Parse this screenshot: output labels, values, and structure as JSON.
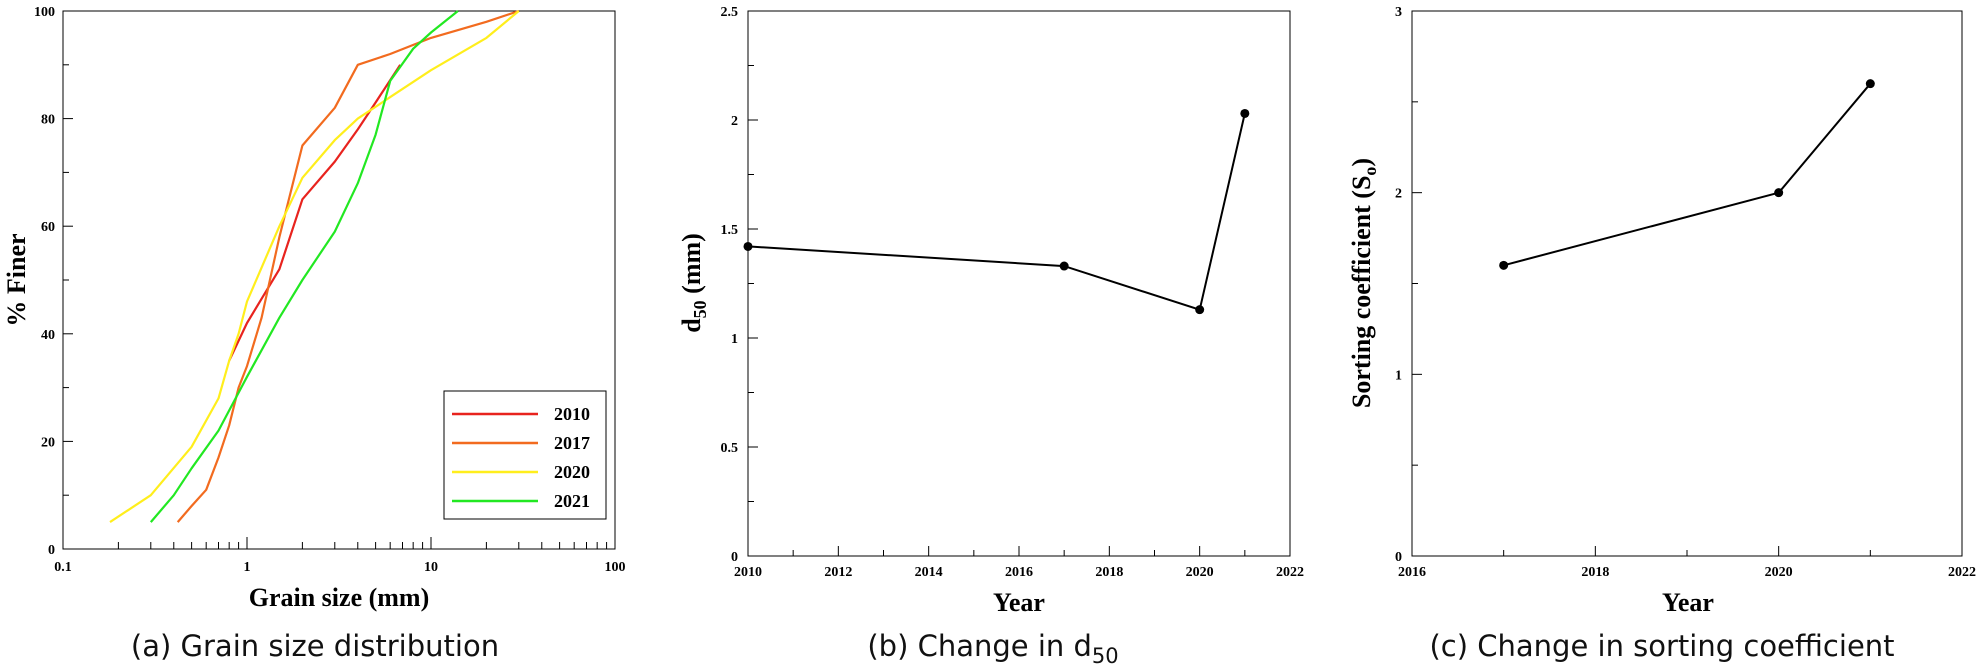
{
  "chart_data": [
    {
      "type": "line",
      "caption": "(a) Grain size distribution",
      "xlabel": "Grain size (mm)",
      "ylabel": "% Finer",
      "xscale": "log",
      "xlim": [
        0.1,
        100
      ],
      "ylim": [
        0,
        100
      ],
      "xticks": [
        "0.1",
        "1",
        "10",
        "100"
      ],
      "yticks": [
        "0",
        "20",
        "40",
        "60",
        "80",
        "100"
      ],
      "legend_position": "bottom-right",
      "series": [
        {
          "name": "2010",
          "color": "#e8231e",
          "x": [
            0.8,
            1.0,
            1.5,
            2.0,
            3.0,
            4.0,
            5.0,
            6.8
          ],
          "y": [
            35,
            42,
            52,
            65,
            72,
            78,
            83,
            90
          ]
        },
        {
          "name": "2017",
          "color": "#f26b1f",
          "x": [
            0.42,
            0.5,
            0.6,
            0.7,
            0.8,
            0.9,
            1.0,
            1.2,
            1.5,
            2.0,
            3.0,
            4.0,
            6.0,
            10.0,
            20.0,
            30.0
          ],
          "y": [
            5,
            8,
            11,
            17,
            23,
            30,
            34,
            43,
            58,
            75,
            82,
            90,
            92,
            95,
            98,
            100
          ]
        },
        {
          "name": "2020",
          "color": "#ffee1c",
          "x": [
            0.18,
            0.3,
            0.5,
            0.7,
            0.8,
            0.9,
            1.0,
            1.5,
            2.0,
            3.0,
            4.0,
            6.0,
            10.0,
            20.0,
            30.0
          ],
          "y": [
            5,
            10,
            19,
            28,
            35,
            40,
            46,
            60,
            69,
            76,
            80,
            84,
            89,
            95,
            100
          ]
        },
        {
          "name": "2021",
          "color": "#22e822",
          "x": [
            0.3,
            0.4,
            0.5,
            0.7,
            1.0,
            1.5,
            2.0,
            3.0,
            4.0,
            5.0,
            6.0,
            8.0,
            10.0,
            14.0
          ],
          "y": [
            5,
            10,
            15,
            22,
            32,
            43,
            50,
            59,
            68,
            77,
            87,
            93,
            96,
            100
          ]
        }
      ]
    },
    {
      "type": "line",
      "caption_prefix": "(b) Change in d",
      "caption_sub": "50",
      "xlabel": "Year",
      "ylabel_main": "d",
      "ylabel_sub": "50",
      "ylabel_suffix": " (mm)",
      "xlim": [
        2010,
        2022
      ],
      "ylim": [
        0,
        2.5
      ],
      "xticks": [
        "2010",
        "2012",
        "2014",
        "2016",
        "2018",
        "2020",
        "2022"
      ],
      "yticks": [
        "0",
        "0.5",
        "1",
        "1.5",
        "2",
        "2.5"
      ],
      "series": [
        {
          "color": "#000000",
          "x": [
            2010,
            2017,
            2020,
            2021
          ],
          "y": [
            1.42,
            1.33,
            1.13,
            2.03
          ]
        }
      ]
    },
    {
      "type": "line",
      "caption": "(c) Change in sorting coefficient",
      "xlabel": "Year",
      "ylabel_main": "Sorting coefficient (S",
      "ylabel_sub": "o",
      "ylabel_suffix": ")",
      "xlim": [
        2016,
        2022
      ],
      "ylim": [
        0,
        3
      ],
      "xticks": [
        "2016",
        "2018",
        "2020",
        "2022"
      ],
      "yticks": [
        "0",
        "1",
        "2",
        "3"
      ],
      "series": [
        {
          "color": "#000000",
          "x": [
            2017,
            2020,
            2021
          ],
          "y": [
            1.6,
            2.0,
            2.6
          ]
        }
      ]
    }
  ]
}
